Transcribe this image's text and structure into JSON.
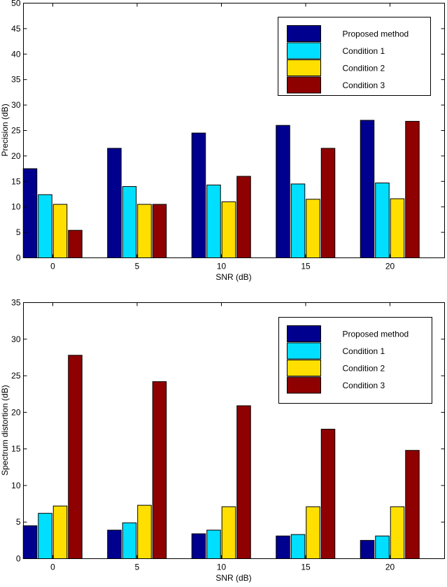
{
  "chart_data": [
    {
      "type": "bar",
      "xlabel": "SNR (dB)",
      "ylabel": "Precision (dB)",
      "categories": [
        "0",
        "5",
        "10",
        "15",
        "20"
      ],
      "ylim": [
        0,
        50
      ],
      "yticks": [
        "0",
        "5",
        "10",
        "15",
        "20",
        "25",
        "30",
        "35",
        "40",
        "45",
        "50"
      ],
      "grid": false,
      "legend_position": "top-right",
      "series": [
        {
          "name": "Proposed method",
          "color": "#00008f",
          "values": [
            17.5,
            21.5,
            24.5,
            26.0,
            27.0
          ]
        },
        {
          "name": "Condition 1",
          "color": "#00dfff",
          "values": [
            12.4,
            14.0,
            14.3,
            14.5,
            14.7
          ]
        },
        {
          "name": "Condition 2",
          "color": "#ffdf00",
          "values": [
            10.5,
            10.5,
            11.0,
            11.5,
            11.6
          ]
        },
        {
          "name": "Condition 3",
          "color": "#8f0000",
          "values": [
            5.4,
            10.5,
            16.0,
            21.5,
            26.8
          ]
        }
      ]
    },
    {
      "type": "bar",
      "xlabel": "SNR (dB)",
      "ylabel": "Spectrum distortion (dB)",
      "categories": [
        "0",
        "5",
        "10",
        "15",
        "20"
      ],
      "ylim": [
        0,
        35
      ],
      "yticks": [
        "0",
        "5",
        "10",
        "15",
        "20",
        "25",
        "30",
        "35"
      ],
      "grid": false,
      "legend_position": "top-right",
      "series": [
        {
          "name": "Proposed method",
          "color": "#00008f",
          "values": [
            4.5,
            3.9,
            3.4,
            3.1,
            2.5
          ]
        },
        {
          "name": "Condition 1",
          "color": "#00dfff",
          "values": [
            6.2,
            4.9,
            3.9,
            3.3,
            3.1
          ]
        },
        {
          "name": "Condition 2",
          "color": "#ffdf00",
          "values": [
            7.2,
            7.3,
            7.1,
            7.1,
            7.1
          ]
        },
        {
          "name": "Condition 3",
          "color": "#8f0000",
          "values": [
            27.8,
            24.2,
            20.9,
            17.7,
            14.8
          ]
        }
      ]
    }
  ]
}
